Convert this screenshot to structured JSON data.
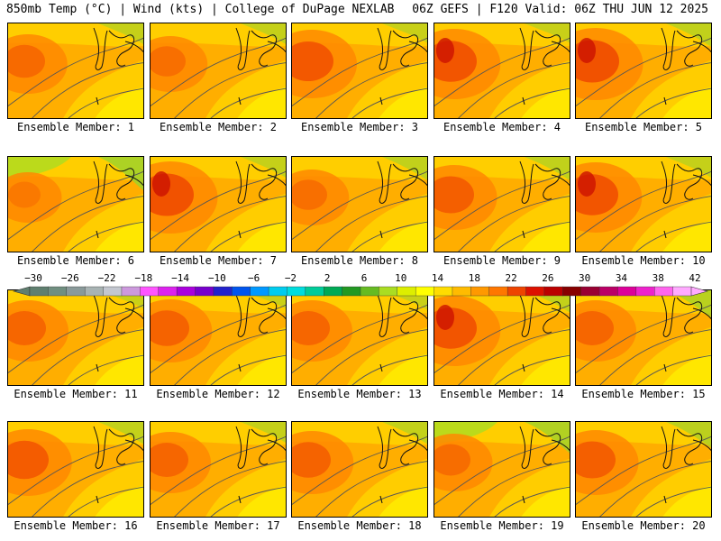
{
  "header": {
    "left_title": "850mb Temp (°C) | Wind (kts) | College of DuPage NEXLAB",
    "right_title": "06Z GEFS | F120 Valid: 06Z THU JUN 12 2025"
  },
  "panels": [
    {
      "label": "Ensemble Member: 1",
      "hot": 0.55,
      "cool": 0.2
    },
    {
      "label": "Ensemble Member: 2",
      "hot": 0.45,
      "cool": 0.2
    },
    {
      "label": "Ensemble Member: 3",
      "hot": 0.8,
      "cool": 0.15
    },
    {
      "label": "Ensemble Member: 4",
      "hot": 0.85,
      "cool": 0.15
    },
    {
      "label": "Ensemble Member: 5",
      "hot": 0.9,
      "cool": 0.3
    },
    {
      "label": "Ensemble Member: 6",
      "hot": 0.3,
      "cool": 0.7
    },
    {
      "label": "Ensemble Member: 7",
      "hot": 0.9,
      "cool": 0.2
    },
    {
      "label": "Ensemble Member: 8",
      "hot": 0.45,
      "cool": 0.3
    },
    {
      "label": "Ensemble Member: 9",
      "hot": 0.7,
      "cool": 0.3
    },
    {
      "label": "Ensemble Member: 10",
      "hot": 0.85,
      "cool": 0.2
    },
    {
      "label": "Ensemble Member: 11",
      "hot": 0.6,
      "cool": 0.1
    },
    {
      "label": "Ensemble Member: 12",
      "hot": 0.65,
      "cool": 0.1
    },
    {
      "label": "Ensemble Member: 13",
      "hot": 0.6,
      "cool": 0.15
    },
    {
      "label": "Ensemble Member: 14",
      "hot": 0.85,
      "cool": 0.25
    },
    {
      "label": "Ensemble Member: 15",
      "hot": 0.6,
      "cool": 0.45
    },
    {
      "label": "Ensemble Member: 16",
      "hot": 0.75,
      "cool": 0.25
    },
    {
      "label": "Ensemble Member: 17",
      "hot": 0.6,
      "cool": 0.2
    },
    {
      "label": "Ensemble Member: 18",
      "hot": 0.65,
      "cool": 0.25
    },
    {
      "label": "Ensemble Member: 19",
      "hot": 0.5,
      "cool": 0.6
    },
    {
      "label": "Ensemble Member: 20",
      "hot": 0.7,
      "cool": 0.4
    }
  ],
  "colorbar": {
    "tick_labels": [
      "−30",
      "−26",
      "−22",
      "−18",
      "−14",
      "−10",
      "−6",
      "−2",
      "2",
      "6",
      "10",
      "14",
      "18",
      "22",
      "26",
      "30",
      "34",
      "38",
      "42"
    ],
    "swatches": [
      "#5f7f6f",
      "#708f80",
      "#8a9a9a",
      "#a8b3b3",
      "#c3c7d0",
      "#cc99dd",
      "#ff55ff",
      "#dd22ee",
      "#aa00dd",
      "#7700cc",
      "#2222cc",
      "#0055ee",
      "#0099ff",
      "#00ccee",
      "#00dddd",
      "#00cc99",
      "#00aa55",
      "#229922",
      "#66bb22",
      "#aadd22",
      "#ddee00",
      "#ffff00",
      "#ffdd00",
      "#ffbb00",
      "#ff9900",
      "#ff7700",
      "#ee4400",
      "#dd1100",
      "#bb0000",
      "#880000",
      "#990033",
      "#bb0066",
      "#dd0099",
      "#ee22cc",
      "#ff66ee",
      "#ffaaff"
    ]
  }
}
